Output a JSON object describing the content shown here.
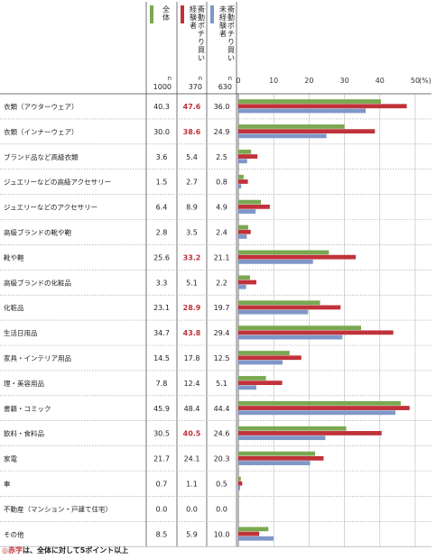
{
  "chart_data": {
    "type": "bar",
    "orientation": "horizontal",
    "x_unit": "(%)",
    "xlim": [
      0,
      50
    ],
    "x_ticks": [
      0,
      10,
      20,
      30,
      40,
      50
    ],
    "grid": true,
    "columns": [
      {
        "key": "all",
        "label": "全体",
        "n_label": "n",
        "n_value": "1000",
        "color": "#7aa851"
      },
      {
        "key": "exp",
        "label": "衝動ポチり買い経験者",
        "n_label": "n",
        "n_value": "370",
        "color": "#c0323a"
      },
      {
        "key": "noexp",
        "label": "衝動ポチり買い未経験者",
        "n_label": "n",
        "n_value": "630",
        "color": "#7f97c8"
      }
    ],
    "categories": [
      "衣類（アウターウェア）",
      "衣類（インナーウェア）",
      "ブランド品など高級衣類",
      "ジュエリーなどの高級アクセサリー",
      "ジュエリーなどのアクセサリー",
      "高級ブランドの靴や鞄",
      "靴や鞄",
      "高級ブランドの化粧品",
      "化粧品",
      "生活日用品",
      "家具・インテリア用品",
      "理・美容用品",
      "書籍・コミック",
      "飲料・食料品",
      "家電",
      "車",
      "不動産（マンション・戸建て住宅）",
      "その他"
    ],
    "series": [
      {
        "name": "全体",
        "color": "#7aa851",
        "values": [
          40.3,
          30.0,
          3.6,
          1.5,
          6.4,
          2.8,
          25.6,
          3.3,
          23.1,
          34.7,
          14.5,
          7.8,
          45.9,
          30.5,
          21.7,
          0.7,
          0.0,
          8.5
        ],
        "labels": [
          "40.3",
          "30.0",
          "3.6",
          "1.5",
          "6.4",
          "2.8",
          "25.6",
          "3.3",
          "23.1",
          "34.7",
          "14.5",
          "7.8",
          "45.9",
          "30.5",
          "21.7",
          "0.7",
          "0.0",
          "8.5"
        ]
      },
      {
        "name": "衝動ポチり買い経験者",
        "color": "#c0323a",
        "values": [
          47.6,
          38.6,
          5.4,
          2.7,
          8.9,
          3.5,
          33.2,
          5.1,
          28.9,
          43.8,
          17.8,
          12.4,
          48.4,
          40.5,
          24.1,
          1.1,
          0.0,
          5.9
        ],
        "labels": [
          "47.6",
          "38.6",
          "5.4",
          "2.7",
          "8.9",
          "3.5",
          "33.2",
          "5.1",
          "28.9",
          "43.8",
          "17.8",
          "12.4",
          "48.4",
          "40.5",
          "24.1",
          "1.1",
          "0.0",
          "5.9"
        ],
        "highlight": [
          true,
          true,
          false,
          false,
          false,
          false,
          true,
          false,
          true,
          true,
          false,
          false,
          false,
          true,
          false,
          false,
          false,
          false
        ]
      },
      {
        "name": "衝動ポチり買い未経験者",
        "color": "#7f97c8",
        "values": [
          36.0,
          24.9,
          2.5,
          0.8,
          4.9,
          2.4,
          21.1,
          2.2,
          19.7,
          29.4,
          12.5,
          5.1,
          44.4,
          24.6,
          20.3,
          0.5,
          0.0,
          10.0
        ],
        "labels": [
          "36.0",
          "24.9",
          "2.5",
          "0.8",
          "4.9",
          "2.4",
          "21.1",
          "2.2",
          "19.7",
          "29.4",
          "12.5",
          "5.1",
          "44.4",
          "24.6",
          "20.3",
          "0.5",
          "0.0",
          "10.0"
        ]
      }
    ],
    "highlight_color": "#c0323a",
    "footnote": {
      "marker": "◎",
      "red_word": "赤字",
      "rest": "は、全体に対して5ポイント以上"
    }
  }
}
